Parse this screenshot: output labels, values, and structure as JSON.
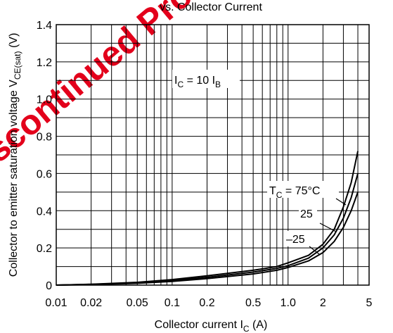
{
  "chart_data": {
    "type": "line",
    "title_fragment": "vs. Collector Current",
    "xlabel": {
      "main": "Collector current  I",
      "sub": "C",
      "unit": "  (A)"
    },
    "ylabel": {
      "main": "Collector to emitter saturation voltage  V",
      "sub": "CE(sat)",
      "unit": "  (V)"
    },
    "x_scale": "log",
    "xlim": [
      0.01,
      5
    ],
    "ylim": [
      0,
      1.4
    ],
    "grid": true,
    "x_ticks": [
      0.01,
      0.02,
      0.05,
      0.1,
      0.2,
      0.5,
      1.0,
      2,
      5
    ],
    "x_tick_labels": [
      "0.01",
      "0.02",
      "0.05",
      "0.1",
      "0.2",
      "0.5",
      "1.0",
      "2",
      "5"
    ],
    "y_ticks": [
      0,
      0.2,
      0.4,
      0.6,
      0.8,
      1.0,
      1.2,
      1.4
    ],
    "y_tick_labels": [
      "0",
      "0.2",
      "0.4",
      "0.6",
      "0.8",
      "1.0",
      "1.2",
      "1.4"
    ],
    "condition": {
      "main": "I",
      "sub1": "C",
      "mid": " = 10 I",
      "sub2": "B"
    },
    "series": [
      {
        "name": "T_C = 75°C",
        "x": [
          0.01,
          0.02,
          0.05,
          0.1,
          0.2,
          0.5,
          0.8,
          1.0,
          1.5,
          2.0,
          2.5,
          3.0,
          3.5,
          4.0
        ],
        "y": [
          0.0,
          0.005,
          0.015,
          0.03,
          0.05,
          0.08,
          0.1,
          0.12,
          0.16,
          0.22,
          0.3,
          0.42,
          0.55,
          0.72
        ]
      },
      {
        "name": "25",
        "x": [
          0.01,
          0.02,
          0.05,
          0.1,
          0.2,
          0.5,
          0.8,
          1.0,
          1.5,
          2.0,
          2.5,
          3.0,
          3.5,
          4.0
        ],
        "y": [
          0.0,
          0.004,
          0.012,
          0.025,
          0.042,
          0.07,
          0.09,
          0.105,
          0.145,
          0.2,
          0.27,
          0.36,
          0.47,
          0.6
        ]
      },
      {
        "name": "-25",
        "x": [
          0.01,
          0.02,
          0.05,
          0.1,
          0.2,
          0.5,
          0.8,
          1.0,
          1.5,
          2.0,
          2.5,
          3.0,
          3.5,
          4.0
        ],
        "y": [
          0.0,
          0.003,
          0.01,
          0.02,
          0.035,
          0.06,
          0.08,
          0.095,
          0.13,
          0.175,
          0.235,
          0.31,
          0.4,
          0.5
        ]
      }
    ],
    "curve_labels": [
      {
        "main": "T",
        "sub": "C",
        "rest": " = 75°C"
      },
      {
        "main": "25"
      },
      {
        "main": "–25"
      }
    ],
    "watermark": "Discontinued Product",
    "line_color": "#000000",
    "watermark_color": "#e3001b"
  }
}
